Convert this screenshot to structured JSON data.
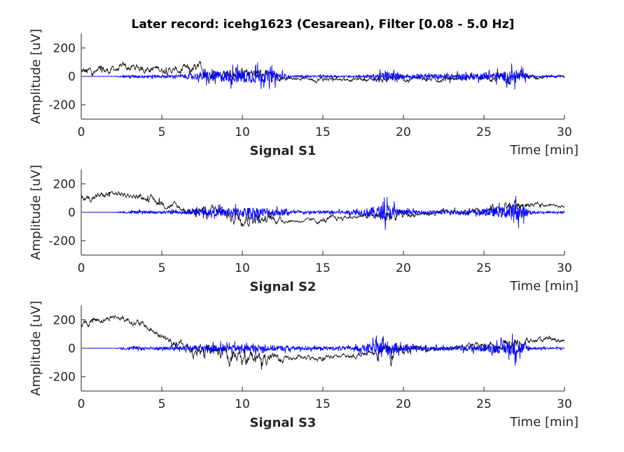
{
  "chart_data": {
    "type": "line",
    "title": "Later record: icehg1623 (Cesarean), Filter [0.08 - 5.0 Hz]",
    "subplots": [
      {
        "name": "Signal S1",
        "xlabel": "Time [min]",
        "ylabel": "Amplitude [uV]",
        "xlim": [
          0,
          30
        ],
        "ylim": [
          -300,
          300
        ],
        "xticks": [
          0,
          5,
          10,
          15,
          20,
          25,
          30
        ],
        "yticks": [
          -200,
          0,
          200
        ],
        "x_minutes": [
          0,
          1,
          2,
          3,
          4,
          5,
          6,
          7,
          8,
          9,
          10,
          11,
          12,
          13,
          14,
          15,
          16,
          17,
          18,
          19,
          20,
          21,
          22,
          23,
          24,
          25,
          26,
          27,
          28,
          29,
          30
        ],
        "series": [
          {
            "name": "raw",
            "color": "#000000",
            "baseline": [
              30,
              20,
              50,
              60,
              60,
              50,
              40,
              40,
              30,
              20,
              10,
              10,
              0,
              -10,
              -15,
              -20,
              -20,
              -20,
              -20,
              -15,
              -25,
              -15,
              -20,
              -15,
              -15,
              -10,
              -10,
              -5,
              -10,
              -5,
              0
            ],
            "noise_amplitude": [
              40,
              45,
              30,
              35,
              35,
              30,
              30,
              45,
              55,
              55,
              60,
              55,
              35,
              15,
              15,
              25,
              15,
              15,
              20,
              45,
              30,
              25,
              20,
              25,
              25,
              25,
              35,
              45,
              20,
              15,
              15
            ]
          },
          {
            "name": "filtered",
            "color": "#0000ff",
            "baseline": [
              0,
              0,
              0,
              0,
              0,
              0,
              0,
              0,
              0,
              0,
              0,
              0,
              0,
              0,
              0,
              0,
              0,
              0,
              0,
              0,
              0,
              0,
              0,
              0,
              0,
              0,
              0,
              0,
              0,
              0,
              0
            ],
            "noise_amplitude": [
              0,
              0,
              0,
              15,
              20,
              15,
              15,
              40,
              60,
              70,
              80,
              80,
              70,
              10,
              10,
              10,
              10,
              10,
              20,
              60,
              20,
              30,
              25,
              30,
              35,
              40,
              50,
              80,
              10,
              5,
              5
            ]
          }
        ]
      },
      {
        "name": "Signal S2",
        "xlabel": "Time [min]",
        "ylabel": "Amplitude [uV]",
        "xlim": [
          0,
          30
        ],
        "ylim": [
          -300,
          300
        ],
        "xticks": [
          0,
          5,
          10,
          15,
          20,
          25,
          30
        ],
        "yticks": [
          -200,
          0,
          200
        ],
        "x_minutes": [
          0,
          1,
          2,
          3,
          4,
          5,
          6,
          7,
          8,
          9,
          10,
          11,
          12,
          13,
          14,
          15,
          16,
          17,
          18,
          19,
          20,
          21,
          22,
          23,
          24,
          25,
          26,
          27,
          28,
          29,
          30
        ],
        "series": [
          {
            "name": "raw",
            "color": "#000000",
            "baseline": [
              100,
              110,
              130,
              120,
              100,
              70,
              30,
              10,
              0,
              -20,
              -30,
              -40,
              -50,
              -60,
              -60,
              -60,
              -40,
              -30,
              -30,
              -30,
              -20,
              -10,
              -10,
              0,
              10,
              20,
              30,
              50,
              50,
              50,
              50
            ],
            "noise_amplitude": [
              30,
              30,
              25,
              25,
              25,
              30,
              30,
              40,
              50,
              60,
              60,
              55,
              30,
              15,
              15,
              25,
              20,
              15,
              20,
              80,
              30,
              20,
              20,
              20,
              20,
              25,
              40,
              60,
              20,
              15,
              15
            ]
          },
          {
            "name": "filtered",
            "color": "#0000ff",
            "baseline": [
              0,
              0,
              0,
              0,
              0,
              0,
              0,
              0,
              0,
              0,
              0,
              0,
              0,
              0,
              0,
              0,
              0,
              0,
              0,
              0,
              0,
              0,
              0,
              0,
              0,
              0,
              0,
              0,
              0,
              0,
              0
            ],
            "noise_amplitude": [
              0,
              0,
              0,
              15,
              15,
              15,
              20,
              25,
              40,
              50,
              60,
              60,
              50,
              20,
              15,
              20,
              20,
              30,
              60,
              100,
              30,
              20,
              20,
              30,
              30,
              40,
              60,
              100,
              20,
              10,
              10
            ]
          }
        ]
      },
      {
        "name": "Signal S3",
        "xlabel": "Time [min]",
        "ylabel": "Amplitude [uV]",
        "xlim": [
          0,
          30
        ],
        "ylim": [
          -300,
          300
        ],
        "xticks": [
          0,
          5,
          10,
          15,
          20,
          25,
          30
        ],
        "yticks": [
          -200,
          0,
          200
        ],
        "x_minutes": [
          0,
          1,
          2,
          3,
          4,
          5,
          6,
          7,
          8,
          9,
          10,
          11,
          12,
          13,
          14,
          15,
          16,
          17,
          18,
          19,
          20,
          21,
          22,
          23,
          24,
          25,
          26,
          27,
          28,
          29,
          30
        ],
        "series": [
          {
            "name": "raw",
            "color": "#000000",
            "baseline": [
              150,
              200,
              220,
              200,
              150,
              80,
              20,
              -10,
              -30,
              -50,
              -60,
              -70,
              -70,
              -70,
              -70,
              -60,
              -60,
              -50,
              -40,
              -30,
              -20,
              -10,
              -10,
              0,
              10,
              20,
              30,
              40,
              50,
              60,
              60
            ],
            "noise_amplitude": [
              30,
              30,
              25,
              30,
              30,
              30,
              40,
              60,
              70,
              70,
              65,
              60,
              40,
              20,
              20,
              25,
              20,
              20,
              25,
              90,
              30,
              20,
              20,
              20,
              20,
              25,
              40,
              60,
              20,
              20,
              20
            ]
          },
          {
            "name": "filtered",
            "color": "#0000ff",
            "baseline": [
              0,
              0,
              0,
              0,
              0,
              0,
              0,
              0,
              0,
              0,
              0,
              0,
              0,
              0,
              0,
              0,
              0,
              0,
              0,
              0,
              0,
              0,
              0,
              0,
              0,
              0,
              0,
              0,
              0,
              0,
              0
            ],
            "noise_amplitude": [
              0,
              0,
              0,
              20,
              20,
              20,
              25,
              30,
              40,
              40,
              40,
              40,
              35,
              25,
              20,
              20,
              20,
              25,
              60,
              90,
              30,
              20,
              20,
              25,
              30,
              40,
              60,
              100,
              15,
              10,
              10
            ]
          }
        ]
      }
    ]
  }
}
